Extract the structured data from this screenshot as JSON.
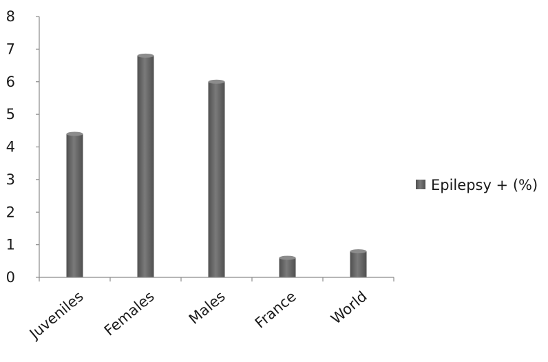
{
  "chart_data": {
    "type": "bar",
    "categories": [
      "Juveniles",
      "Females",
      "Males",
      "France",
      "World"
    ],
    "series": [
      {
        "name": "Epilepsy + (%)",
        "values": [
          4.4,
          6.8,
          6.0,
          0.6,
          0.8
        ]
      }
    ],
    "ylim": [
      0,
      8
    ],
    "yticks": [
      "0",
      "1",
      "2",
      "3",
      "4",
      "5",
      "6",
      "7",
      "8"
    ],
    "grid": false,
    "legend_position": "right",
    "colors": {
      "bar": "#4f4f4f",
      "bar_highlight": "#7a7a7a",
      "axis": "#8a8a8a"
    }
  }
}
